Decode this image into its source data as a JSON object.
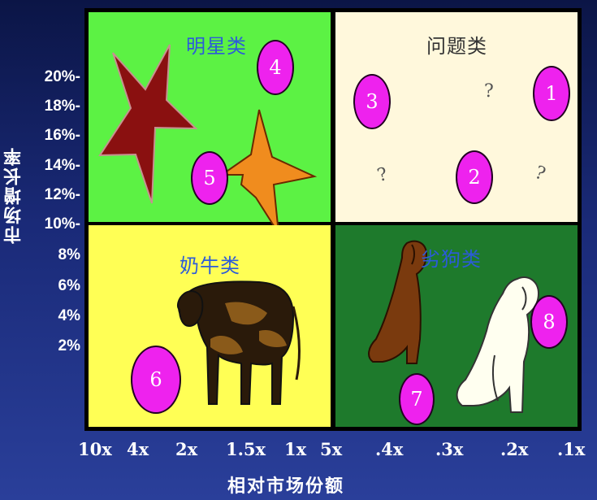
{
  "quadrants": {
    "star": "明星类",
    "question": "问题类",
    "cashcow": "奶牛类",
    "dog": "劣狗类"
  },
  "y_axis": {
    "title": "市场增长率",
    "ticks": [
      "20%-",
      "18%-",
      "16%-",
      "14%-",
      "12%-",
      "10%-",
      "8%",
      "6%",
      "4%",
      "2%"
    ]
  },
  "x_axis": {
    "title": "相对市场份额",
    "ticks": [
      "10x",
      "4x",
      "2x",
      "1.5x",
      "1x",
      "5x",
      ".4x",
      ".3x",
      ".2x",
      ".1x"
    ]
  },
  "businesses": [
    "1",
    "2",
    "3",
    "4",
    "5",
    "6",
    "7",
    "8"
  ],
  "question_mark": "?",
  "colors": {
    "star_bg": "#5cf244",
    "question_bg": "#fff8dc",
    "cashcow_bg": "#ffff55",
    "dog_bg": "#1e7a2c",
    "bubble": "#ee22ee"
  },
  "icons": [
    "star-icon",
    "cow-icon",
    "dog-icon",
    "question-mark-icon"
  ]
}
